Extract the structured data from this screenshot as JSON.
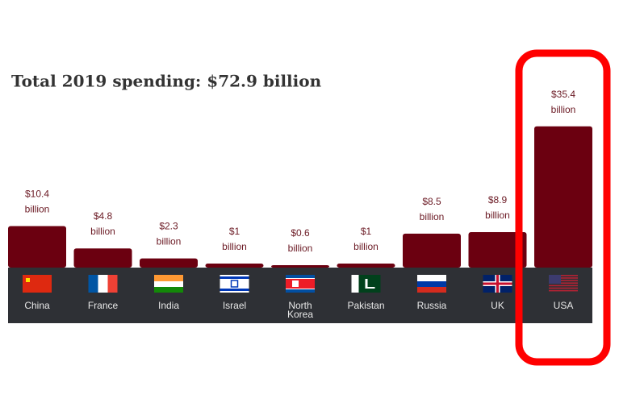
{
  "chart_data": {
    "type": "bar",
    "title": "Total 2019 spending: $72.9 billion",
    "categories": [
      "China",
      "France",
      "India",
      "Israel",
      "North Korea",
      "Pakistan",
      "Russia",
      "UK",
      "USA"
    ],
    "values": [
      10.4,
      4.8,
      2.3,
      1,
      0.6,
      1,
      8.5,
      8.9,
      35.4
    ],
    "value_labels": [
      "$10.4 billion",
      "$4.8 billion",
      "$2.3 billion",
      "$1 billion",
      "$0.6 billion",
      "$1 billion",
      "$8.5 billion",
      "$8.9 billion",
      "$35.4 billion"
    ],
    "color": "#6b0010",
    "ylim": [
      0,
      40
    ]
  }
}
